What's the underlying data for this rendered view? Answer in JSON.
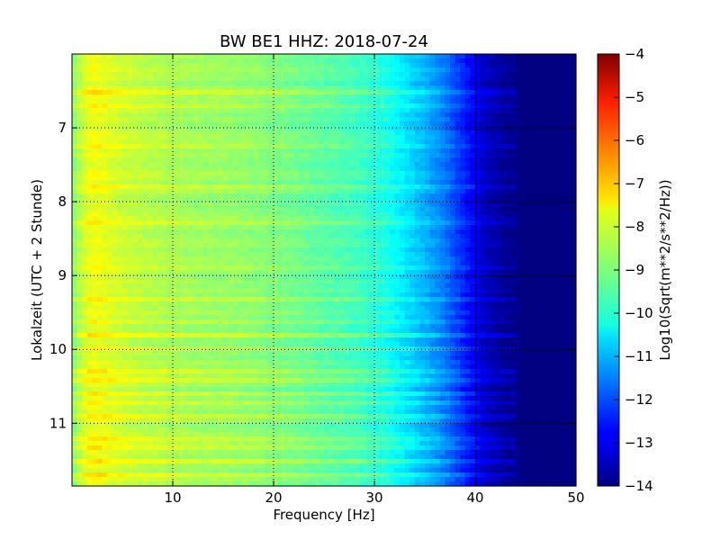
{
  "chart_data": {
    "type": "heatmap",
    "title": "BW BE1 HHZ: 2018-07-24",
    "xlabel": "Frequency [Hz]",
    "ylabel": "Lokalzeit (UTC + 2 Stunde)",
    "xlim": [
      0,
      50
    ],
    "ylim": [
      6.0,
      11.85
    ],
    "y_inverted": true,
    "x_ticks": [
      10,
      20,
      30,
      40,
      50
    ],
    "x_tick_labels": [
      "10",
      "20",
      "30",
      "40",
      "50"
    ],
    "y_ticks": [
      7,
      8,
      9,
      10,
      11
    ],
    "y_tick_labels": [
      "7",
      "8",
      "9",
      "10",
      "11"
    ],
    "grid": true,
    "colormap": "jet",
    "colorbar": {
      "label": "Log10(Sqrt(m**2/s**2/Hz))",
      "range": [
        -14,
        -4
      ],
      "ticks": [
        -4,
        -5,
        -6,
        -7,
        -8,
        -9,
        -10,
        -11,
        -12,
        -13,
        -14
      ],
      "tick_labels": [
        "−4",
        "−5",
        "−6",
        "−7",
        "−8",
        "−9",
        "−10",
        "−11",
        "−12",
        "−13",
        "−14"
      ]
    },
    "spectral_profile": {
      "frequency_hz": [
        0,
        1,
        2,
        3,
        5,
        8,
        12,
        16,
        20,
        24,
        28,
        31,
        33,
        35,
        37,
        39,
        41,
        43,
        45,
        47,
        50
      ],
      "log10_amplitude": [
        -9.0,
        -8.3,
        -7.9,
        -8.0,
        -8.3,
        -8.5,
        -8.7,
        -8.8,
        -9.0,
        -9.3,
        -9.6,
        -10.0,
        -10.5,
        -11.0,
        -11.6,
        -12.5,
        -13.4,
        -13.8,
        -14.0,
        -14.0,
        -14.0
      ]
    },
    "horizontal_events_hours": [
      6.5,
      6.7,
      7.25,
      7.8,
      8.3,
      8.9,
      9.3,
      9.6,
      9.8,
      10.0,
      10.3,
      10.4,
      10.6,
      10.7,
      10.9,
      11.2,
      11.3,
      11.5,
      11.7
    ]
  }
}
